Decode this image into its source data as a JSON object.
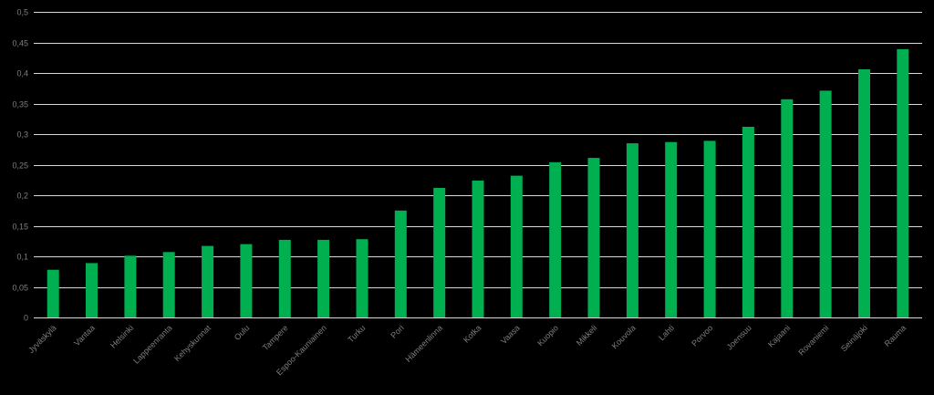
{
  "chart_data": {
    "type": "bar",
    "title": "",
    "xlabel": "",
    "ylabel": "",
    "ylim": [
      0,
      0.5
    ],
    "yticks": [
      "0",
      "0,05",
      "0,1",
      "0,15",
      "0,2",
      "0,25",
      "0,3",
      "0,35",
      "0,4",
      "0,45",
      "0,5"
    ],
    "grid": true,
    "legend": "none",
    "categories": [
      "Jyväskylä",
      "Vantaa",
      "Helsinki",
      "Lappeenranta",
      "Kehyskunnat",
      "Oulu",
      "Tampere",
      "Espoo-Kauniainen",
      "Turku",
      "Pori",
      "Hämeenlinna",
      "Kotka",
      "Vaasa",
      "Kuopio",
      "Mikkeli",
      "Kouvola",
      "Lahti",
      "Porvoo",
      "Joensuu",
      "Kajaani",
      "Rovaniemi",
      "Seinäjoki",
      "Rauma"
    ],
    "values": [
      0.078,
      0.089,
      0.101,
      0.107,
      0.117,
      0.12,
      0.127,
      0.127,
      0.128,
      0.175,
      0.212,
      0.224,
      0.232,
      0.254,
      0.261,
      0.285,
      0.287,
      0.289,
      0.312,
      0.357,
      0.371,
      0.406,
      0.439
    ],
    "colors": {
      "bar": "#00b050",
      "grid": "#d9d9d9",
      "text": "#7f7f7f",
      "background": "#000000"
    }
  }
}
